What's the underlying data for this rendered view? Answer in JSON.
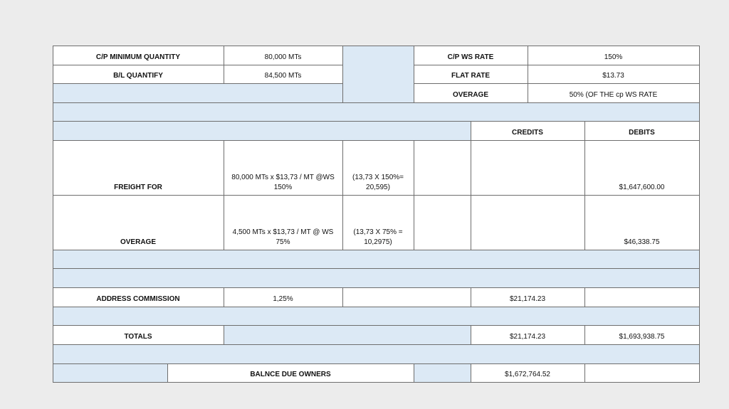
{
  "table": {
    "rows": [
      [
        "C/P MINIMUM QUANTITY",
        "80,000 MTs",
        "C/P WS RATE",
        "150%"
      ],
      [
        "B/L QUANTIFY",
        "84,500 MTs",
        "FLAT RATE",
        "$13.73"
      ],
      [
        "OVERAGE",
        "50% (OF THE cp WS RATE"
      ],
      [
        "CREDITS",
        "DEBITS"
      ],
      [
        "FREIGHT FOR",
        "80,000 MTs  x $13,73 / MT @WS 150%",
        "(13,73 X 150%= 20,595)",
        "$1,647,600.00"
      ],
      [
        "OVERAGE",
        "4,500 MTs    x  $13,73 / MT @ WS 75%",
        "(13,73 X 75% = 10,2975)",
        "$46,338.75"
      ],
      [
        "ADDRESS COMMISSION",
        "1,25%",
        "$21,174.23"
      ],
      [
        "TOTALS",
        "$21,174.23",
        "$1,693,938.75"
      ],
      [
        "BALNCE DUE OWNERS",
        "$1,672,764.52"
      ]
    ]
  }
}
